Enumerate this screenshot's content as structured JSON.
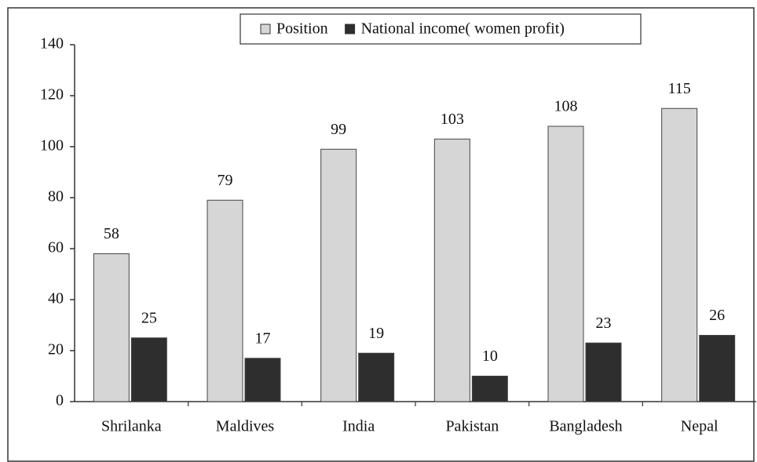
{
  "chart_data": {
    "type": "bar",
    "categories": [
      "Shrilanka",
      "Maldives",
      "India",
      "Pakistan",
      "Bangladesh",
      "Nepal"
    ],
    "series": [
      {
        "name": "Position",
        "color": "#d6d6d6",
        "values": [
          58,
          79,
          99,
          103,
          108,
          115
        ]
      },
      {
        "name": "National income( women profit)",
        "color": "#2e2e2e",
        "values": [
          25,
          17,
          19,
          10,
          23,
          26
        ]
      }
    ],
    "ylim": [
      0,
      140
    ],
    "yticks": [
      0,
      20,
      40,
      60,
      80,
      100,
      120,
      140
    ],
    "grid": false,
    "legend": "top"
  }
}
